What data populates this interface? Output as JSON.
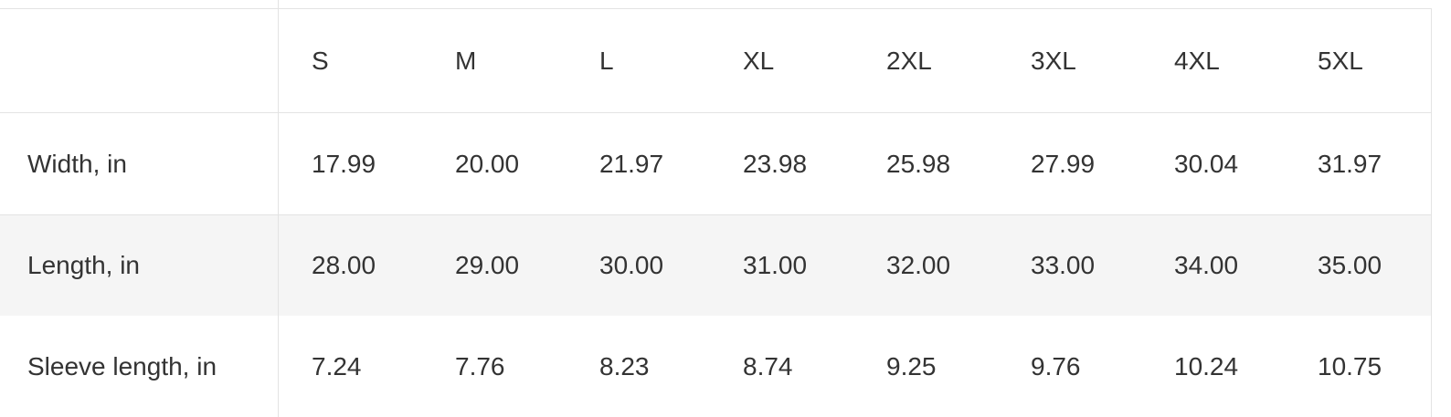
{
  "table": {
    "corner_label": "",
    "sizes": [
      "S",
      "M",
      "L",
      "XL",
      "2XL",
      "3XL",
      "4XL",
      "5XL"
    ],
    "rows": [
      {
        "label": "Width, in",
        "values": [
          "17.99",
          "20.00",
          "21.97",
          "23.98",
          "25.98",
          "27.99",
          "30.04",
          "31.97"
        ]
      },
      {
        "label": "Length, in",
        "values": [
          "28.00",
          "29.00",
          "30.00",
          "31.00",
          "32.00",
          "33.00",
          "34.00",
          "35.00"
        ]
      },
      {
        "label": "Sleeve length, in",
        "values": [
          "7.24",
          "7.76",
          "8.23",
          "8.74",
          "9.25",
          "9.76",
          "10.24",
          "10.75"
        ]
      }
    ]
  },
  "colors": {
    "text": "#333333",
    "border": "#e3e3e3",
    "striped_row": "#f5f5f5",
    "background": "#ffffff"
  }
}
